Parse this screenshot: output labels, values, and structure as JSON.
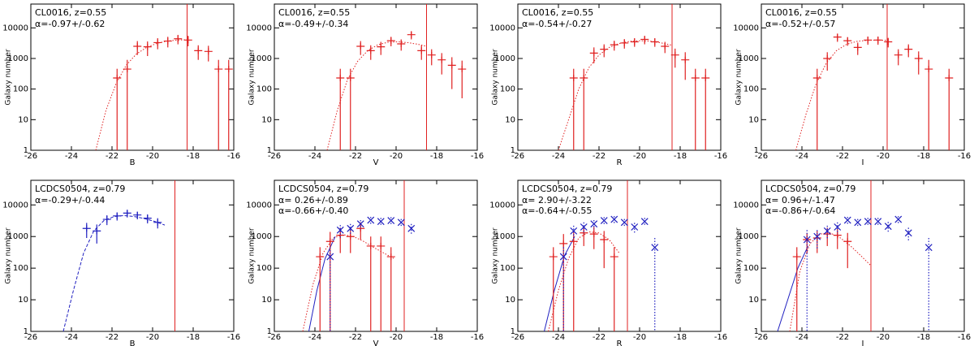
{
  "chart_data": [
    {
      "type": "scatter",
      "title": "CL0016, z=0.55",
      "xlabel": "B",
      "ylabel": "Galaxy number",
      "xlim": [
        -26,
        -16
      ],
      "ylim": [
        1,
        60000
      ],
      "yscale": "log",
      "xticks": [
        -26,
        -24,
        -22,
        -20,
        -18,
        -16
      ],
      "yticks": [
        1,
        10,
        100,
        1000,
        10000
      ],
      "annotations": [
        {
          "text": "α=-0.97+/-0.62",
          "color": "#e02020"
        }
      ],
      "series": [
        {
          "color": "#e02020",
          "marker": "+",
          "error_style": "solid",
          "x": [
            -21.75,
            -21.25,
            -20.75,
            -20.25,
            -19.75,
            -19.25,
            -18.75,
            -18.25,
            -17.75,
            -17.25,
            -16.75,
            -16.25
          ],
          "values": [
            230,
            450,
            2500,
            2400,
            3300,
            3700,
            4400,
            4000,
            1800,
            1700,
            450,
            450
          ],
          "errors": [
            230,
            450,
            1200,
            1200,
            1300,
            1400,
            1500,
            1500,
            900,
            900,
            450,
            450
          ]
        }
      ],
      "fits": [
        {
          "color": "#e02020",
          "style": "dotted",
          "x": [
            -22.8,
            -22.3,
            -21.8,
            -21.3,
            -20.8,
            -20.3,
            -19.8,
            -19.3,
            -18.8,
            -18.3
          ],
          "values": [
            1,
            20,
            150,
            600,
            1400,
            2300,
            3100,
            3700,
            4000,
            4100
          ]
        }
      ],
      "vlines": [
        {
          "value": -18.3,
          "color": "#e02020"
        }
      ]
    },
    {
      "type": "scatter",
      "title": "CL0016, z=0.55",
      "xlabel": "V",
      "ylabel": "Galaxy number",
      "xlim": [
        -26,
        -16
      ],
      "ylim": [
        1,
        60000
      ],
      "yscale": "log",
      "xticks": [
        -26,
        -24,
        -22,
        -20,
        -18,
        -16
      ],
      "yticks": [
        1,
        10,
        100,
        1000,
        10000
      ],
      "annotations": [
        {
          "text": "α=-0.49+/-0.34",
          "color": "#e02020"
        }
      ],
      "series": [
        {
          "color": "#e02020",
          "marker": "+",
          "error_style": "solid",
          "x": [
            -22.75,
            -22.25,
            -21.75,
            -21.25,
            -20.75,
            -20.25,
            -19.75,
            -19.25,
            -18.75,
            -18.25,
            -17.75,
            -17.25,
            -16.75
          ],
          "values": [
            230,
            230,
            2500,
            1800,
            2400,
            3800,
            3000,
            6000,
            1800,
            1300,
            900,
            600,
            450
          ],
          "errors": [
            230,
            230,
            1200,
            900,
            1100,
            1300,
            1200,
            1800,
            900,
            700,
            600,
            500,
            400
          ]
        }
      ],
      "fits": [
        {
          "color": "#e02020",
          "style": "dotted",
          "x": [
            -23.4,
            -22.9,
            -22.4,
            -21.9,
            -21.4,
            -20.9,
            -20.4,
            -19.9,
            -19.4,
            -18.9,
            -18.5
          ],
          "values": [
            1,
            20,
            200,
            800,
            1800,
            2800,
            3400,
            3500,
            3300,
            2900,
            2500
          ]
        }
      ],
      "vlines": [
        {
          "value": -18.5,
          "color": "#e02020"
        }
      ]
    },
    {
      "type": "scatter",
      "title": "CL0016, z=0.55",
      "xlabel": "R",
      "ylabel": "Galaxy number",
      "xlim": [
        -26,
        -16
      ],
      "ylim": [
        1,
        60000
      ],
      "yscale": "log",
      "xticks": [
        -26,
        -24,
        -22,
        -20,
        -18,
        -16
      ],
      "yticks": [
        1,
        10,
        100,
        1000,
        10000
      ],
      "annotations": [
        {
          "text": "α=-0.54+/-0.27",
          "color": "#e02020"
        }
      ],
      "series": [
        {
          "color": "#e02020",
          "marker": "+",
          "error_style": "solid",
          "x": [
            -23.25,
            -22.75,
            -22.25,
            -21.75,
            -21.25,
            -20.75,
            -20.25,
            -19.75,
            -19.25,
            -18.75,
            -18.25,
            -17.75,
            -17.25,
            -16.75
          ],
          "values": [
            230,
            230,
            1500,
            2000,
            2800,
            3200,
            3500,
            4200,
            3500,
            2500,
            1300,
            900,
            230,
            230
          ],
          "errors": [
            230,
            230,
            800,
            900,
            1000,
            1100,
            1100,
            1300,
            1100,
            1000,
            800,
            700,
            230,
            230
          ]
        }
      ],
      "fits": [
        {
          "color": "#e02020",
          "style": "dotted",
          "x": [
            -24,
            -23.5,
            -23,
            -22.5,
            -22,
            -21.5,
            -21,
            -20.5,
            -20,
            -19.5,
            -19,
            -18.4
          ],
          "values": [
            1,
            10,
            100,
            500,
            1300,
            2300,
            3100,
            3600,
            3800,
            3700,
            3300,
            2700
          ]
        }
      ],
      "vlines": [
        {
          "value": -18.4,
          "color": "#e02020"
        }
      ]
    },
    {
      "type": "scatter",
      "title": "CL0016, z=0.55",
      "xlabel": "I",
      "ylabel": "Galaxy number",
      "xlim": [
        -26,
        -16
      ],
      "ylim": [
        1,
        60000
      ],
      "yscale": "log",
      "xticks": [
        -26,
        -24,
        -22,
        -20,
        -18,
        -16
      ],
      "yticks": [
        1,
        10,
        100,
        1000,
        10000
      ],
      "annotations": [
        {
          "text": "α=-0.52+/-0.57",
          "color": "#e02020"
        }
      ],
      "series": [
        {
          "color": "#e02020",
          "marker": "+",
          "error_style": "solid",
          "x": [
            -23.25,
            -22.75,
            -22.25,
            -21.75,
            -21.25,
            -20.75,
            -20.25,
            -19.75,
            -19.25,
            -18.75,
            -18.25,
            -17.75,
            -16.75
          ],
          "values": [
            230,
            1000,
            5000,
            3800,
            2300,
            4000,
            4000,
            3500,
            1300,
            2000,
            1000,
            450,
            230
          ],
          "errors": [
            230,
            600,
            1500,
            1200,
            1000,
            1200,
            1200,
            1200,
            700,
            900,
            700,
            450,
            230
          ]
        }
      ],
      "fits": [
        {
          "color": "#e02020",
          "style": "dotted",
          "x": [
            -24.3,
            -23.8,
            -23.3,
            -22.8,
            -22.3,
            -21.8,
            -21.3,
            -20.8,
            -20.3,
            -19.8
          ],
          "values": [
            1,
            15,
            150,
            700,
            1800,
            2900,
            3600,
            3900,
            4000,
            3900
          ]
        }
      ],
      "vlines": [
        {
          "value": -19.8,
          "color": "#e02020"
        }
      ]
    },
    {
      "type": "scatter",
      "title": "LCDCS0504, z=0.79",
      "xlabel": "B",
      "ylabel": "Galaxy number",
      "xlim": [
        -26,
        -16
      ],
      "ylim": [
        1,
        60000
      ],
      "yscale": "log",
      "xticks": [
        -26,
        -24,
        -22,
        -20,
        -18,
        -16
      ],
      "yticks": [
        1,
        10,
        100,
        1000,
        10000
      ],
      "annotations": [
        {
          "text": "α=-0.29+/-0.44",
          "color": "#2020c0"
        }
      ],
      "series": [
        {
          "color": "#2020c0",
          "marker": "+",
          "error_style": "solid",
          "x": [
            -23.25,
            -22.75,
            -22.25,
            -21.75,
            -21.25,
            -20.75,
            -20.25,
            -19.75
          ],
          "values": [
            1800,
            1500,
            3500,
            4500,
            5500,
            4800,
            3800,
            2800
          ],
          "errors": [
            900,
            900,
            1200,
            1300,
            1500,
            1300,
            1200,
            1000
          ]
        }
      ],
      "fits": [
        {
          "color": "#2020c0",
          "style": "dashed",
          "x": [
            -24.4,
            -23.9,
            -23.4,
            -22.9,
            -22.4,
            -21.9,
            -21.4,
            -20.9,
            -20.4,
            -19.9,
            -19.4
          ],
          "values": [
            1,
            20,
            300,
            1500,
            3200,
            4300,
            4600,
            4300,
            3700,
            3000,
            2300
          ]
        }
      ],
      "vlines": [
        {
          "value": -18.9,
          "color": "#e02020"
        }
      ]
    },
    {
      "type": "scatter",
      "title": "LCDCS0504, z=0.79",
      "xlabel": "V",
      "ylabel": "Galaxy number",
      "xlim": [
        -26,
        -16
      ],
      "ylim": [
        1,
        60000
      ],
      "yscale": "log",
      "xticks": [
        -26,
        -24,
        -22,
        -20,
        -18,
        -16
      ],
      "yticks": [
        1,
        10,
        100,
        1000,
        10000
      ],
      "annotations": [
        {
          "text": "α= 0.26+/-0.89",
          "color": "#e02020"
        },
        {
          "text": "α=-0.66+/-0.40",
          "color": "#2020c0"
        }
      ],
      "series": [
        {
          "color": "#e02020",
          "marker": "+",
          "error_style": "solid",
          "x": [
            -23.75,
            -23.25,
            -22.75,
            -22.25,
            -21.75,
            -21.25,
            -20.75,
            -20.25
          ],
          "values": [
            230,
            700,
            1100,
            1000,
            1800,
            500,
            500,
            230
          ],
          "errors": [
            230,
            700,
            800,
            700,
            1000,
            500,
            500,
            230
          ]
        },
        {
          "color": "#2020c0",
          "marker": "x",
          "error_style": "dotted",
          "x": [
            -23.25,
            -22.75,
            -22.25,
            -21.75,
            -21.25,
            -20.75,
            -20.25,
            -19.75,
            -19.25
          ],
          "values": [
            230,
            1600,
            1800,
            2500,
            3300,
            3000,
            3200,
            2800,
            1800
          ],
          "errors": [
            230,
            700,
            700,
            800,
            900,
            900,
            900,
            800,
            700
          ]
        }
      ],
      "fits": [
        {
          "color": "#e02020",
          "style": "dotted",
          "x": [
            -24.6,
            -24.1,
            -23.6,
            -23.1,
            -22.6,
            -22.1,
            -21.6,
            -21.1,
            -20.6,
            -20.1
          ],
          "values": [
            1,
            30,
            300,
            900,
            1150,
            1000,
            700,
            450,
            300,
            200
          ]
        },
        {
          "color": "#2020c0",
          "style": "solid",
          "x": [
            -24.3,
            -23.9,
            -23.5,
            -23.0
          ],
          "values": [
            1,
            20,
            200,
            1000
          ]
        }
      ],
      "vlines": [
        {
          "value": -19.6,
          "color": "#e02020"
        }
      ]
    },
    {
      "type": "scatter",
      "title": "LCDCS0504, z=0.79",
      "xlabel": "R",
      "ylabel": "Galaxy number",
      "xlim": [
        -26,
        -16
      ],
      "ylim": [
        1,
        60000
      ],
      "yscale": "log",
      "xticks": [
        -26,
        -24,
        -22,
        -20,
        -18,
        -16
      ],
      "yticks": [
        1,
        10,
        100,
        1000,
        10000
      ],
      "annotations": [
        {
          "text": "α= 2.90+/-3.22",
          "color": "#e02020"
        },
        {
          "text": "α=-0.64+/-0.55",
          "color": "#2020c0"
        }
      ],
      "series": [
        {
          "color": "#e02020",
          "marker": "+",
          "error_style": "solid",
          "x": [
            -24.25,
            -23.75,
            -23.25,
            -22.75,
            -22.25,
            -21.75,
            -21.25
          ],
          "values": [
            230,
            600,
            700,
            1300,
            1200,
            800,
            230
          ],
          "errors": [
            230,
            600,
            700,
            800,
            800,
            700,
            230
          ]
        },
        {
          "color": "#2020c0",
          "marker": "x",
          "error_style": "dotted",
          "x": [
            -23.75,
            -23.25,
            -22.75,
            -22.25,
            -21.75,
            -21.25,
            -20.75,
            -20.25,
            -19.75,
            -19.25
          ],
          "values": [
            230,
            1500,
            2000,
            2500,
            3200,
            3500,
            2800,
            2000,
            3000,
            450
          ],
          "errors": [
            230,
            700,
            800,
            800,
            900,
            900,
            800,
            700,
            900,
            450
          ]
        }
      ],
      "fits": [
        {
          "color": "#e02020",
          "style": "dotted",
          "x": [
            -24.5,
            -24,
            -23.5,
            -23,
            -22.5,
            -22,
            -21.5,
            -21
          ],
          "values": [
            1,
            20,
            200,
            900,
            1400,
            1300,
            800,
            300
          ]
        },
        {
          "color": "#2020c0",
          "style": "solid",
          "x": [
            -24.7,
            -24.2,
            -23.7,
            -23.2
          ],
          "values": [
            1,
            20,
            250,
            1000
          ]
        }
      ],
      "vlines": [
        {
          "value": -20.6,
          "color": "#e02020"
        }
      ]
    },
    {
      "type": "scatter",
      "title": "LCDCS0504, z=0.79",
      "xlabel": "I",
      "ylabel": "Galaxy number",
      "xlim": [
        -26,
        -16
      ],
      "ylim": [
        1,
        60000
      ],
      "yscale": "log",
      "xticks": [
        -26,
        -24,
        -22,
        -20,
        -18,
        -16
      ],
      "yticks": [
        1,
        10,
        100,
        1000,
        10000
      ],
      "annotations": [
        {
          "text": "α= 0.96+/-1.47",
          "color": "#e02020"
        },
        {
          "text": "α=-0.86+/-0.64",
          "color": "#2020c0"
        }
      ],
      "series": [
        {
          "color": "#e02020",
          "marker": "+",
          "error_style": "solid",
          "x": [
            -24.25,
            -23.75,
            -23.25,
            -22.75,
            -22.25,
            -21.75
          ],
          "values": [
            230,
            800,
            900,
            1200,
            1100,
            700
          ],
          "errors": [
            230,
            500,
            600,
            700,
            700,
            600
          ]
        },
        {
          "color": "#2020c0",
          "marker": "x",
          "error_style": "dotted",
          "x": [
            -23.75,
            -23.25,
            -22.75,
            -22.25,
            -21.75,
            -21.25,
            -20.75,
            -20.25,
            -19.75,
            -19.25,
            -18.75,
            -17.75
          ],
          "values": [
            800,
            1000,
            1500,
            2000,
            3300,
            2800,
            3000,
            3000,
            2100,
            3500,
            1300,
            450
          ],
          "errors": [
            800,
            600,
            700,
            800,
            900,
            800,
            900,
            900,
            800,
            900,
            600,
            450
          ]
        }
      ],
      "fits": [
        {
          "color": "#e02020",
          "style": "dotted",
          "x": [
            -24.6,
            -24.1,
            -23.6,
            -23.1,
            -22.6,
            -22.1,
            -21.6,
            -21.1,
            -20.6
          ],
          "values": [
            1,
            80,
            600,
            1200,
            1300,
            900,
            500,
            250,
            120
          ]
        },
        {
          "color": "#2020c0",
          "style": "solid",
          "x": [
            -25.2,
            -24.7,
            -24.2,
            -23.7
          ],
          "values": [
            1,
            10,
            100,
            500
          ]
        }
      ],
      "vlines": [
        {
          "value": -20.6,
          "color": "#e02020"
        }
      ]
    }
  ]
}
